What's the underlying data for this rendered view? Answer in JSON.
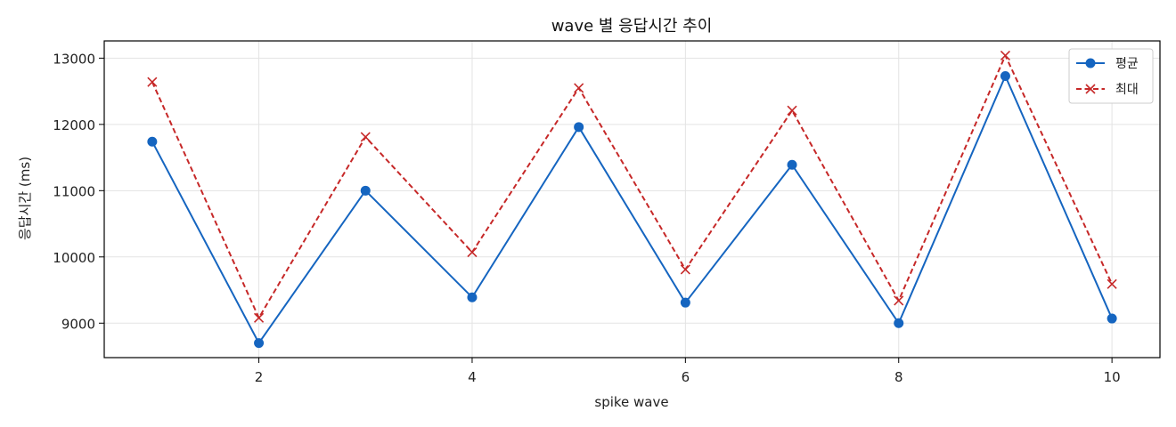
{
  "chart_data": {
    "type": "line",
    "title": "wave 별 응답시간 추이",
    "xlabel": "spike wave",
    "ylabel": "응답시간 (ms)",
    "x": [
      1,
      2,
      3,
      4,
      5,
      6,
      7,
      8,
      9,
      10
    ],
    "xlim": [
      0.55,
      10.45
    ],
    "ylim": [
      8480,
      13260
    ],
    "xticks": [
      2,
      4,
      6,
      8,
      10
    ],
    "yticks": [
      9000,
      10000,
      11000,
      12000,
      13000
    ],
    "grid": true,
    "legend_position": "top-right",
    "series": [
      {
        "name": "평균",
        "values": [
          11740,
          8700,
          11000,
          9390,
          11960,
          9310,
          11390,
          9000,
          12730,
          9070
        ],
        "color": "#1565c0",
        "line_style": "solid",
        "marker": "circle"
      },
      {
        "name": "최대",
        "values": [
          12640,
          9080,
          11810,
          10070,
          12550,
          9810,
          12210,
          9340,
          13040,
          9590
        ],
        "color": "#c62828",
        "line_style": "dashed",
        "marker": "x"
      }
    ]
  }
}
